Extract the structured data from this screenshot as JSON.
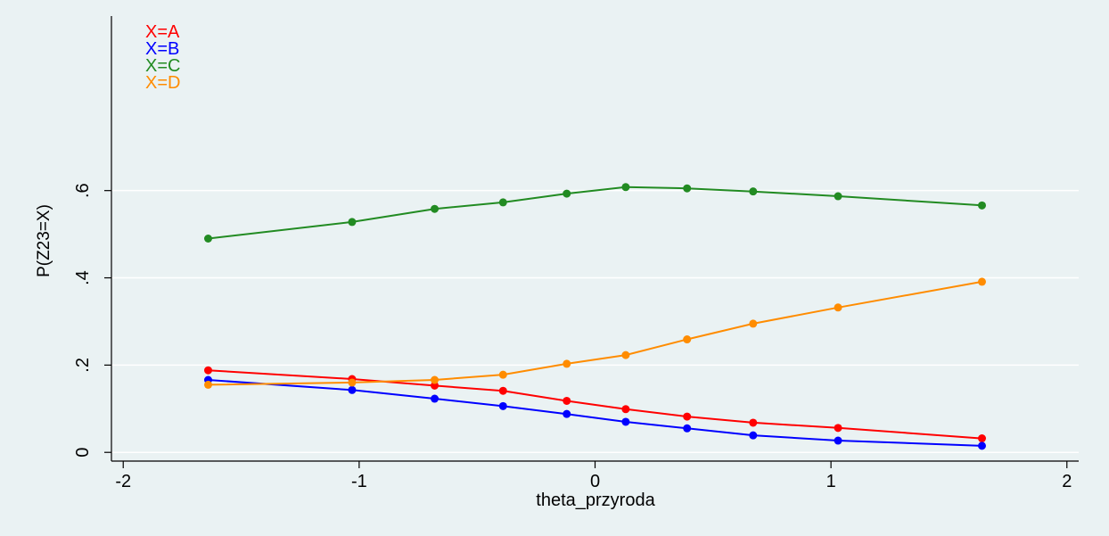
{
  "chart_data": {
    "type": "line",
    "xlabel": "theta_przyroda",
    "ylabel": "P(Z23=X)",
    "xlim": [
      -2.05,
      2.05
    ],
    "ylim": [
      -0.02,
      1.0
    ],
    "x_ticks": [
      -2,
      -1,
      0,
      1,
      2
    ],
    "x_tick_labels": [
      "-2",
      "-1",
      "0",
      "1",
      "2"
    ],
    "y_ticks": [
      0,
      0.2,
      0.4,
      0.6
    ],
    "y_tick_labels": [
      "0",
      ".2",
      ".4",
      ".6"
    ],
    "grid": "horizontal",
    "legend": "top-left",
    "x": [
      -1.64,
      -1.03,
      -0.68,
      -0.39,
      -0.12,
      0.13,
      0.39,
      0.67,
      1.03,
      1.64
    ],
    "series": [
      {
        "name": "X=A",
        "color": "#ff0000",
        "values": [
          0.188,
          0.168,
          0.153,
          0.141,
          0.118,
          0.099,
          0.082,
          0.068,
          0.056,
          0.032
        ]
      },
      {
        "name": "X=B",
        "color": "#0000ff",
        "values": [
          0.166,
          0.143,
          0.123,
          0.106,
          0.088,
          0.07,
          0.055,
          0.039,
          0.027,
          0.015
        ]
      },
      {
        "name": "X=C",
        "color": "#228b22",
        "values": [
          0.49,
          0.528,
          0.558,
          0.573,
          0.593,
          0.608,
          0.605,
          0.598,
          0.587,
          0.566
        ]
      },
      {
        "name": "X=D",
        "color": "#ff8c00",
        "values": [
          0.155,
          0.16,
          0.166,
          0.178,
          0.203,
          0.223,
          0.259,
          0.295,
          0.332,
          0.391
        ]
      }
    ]
  }
}
